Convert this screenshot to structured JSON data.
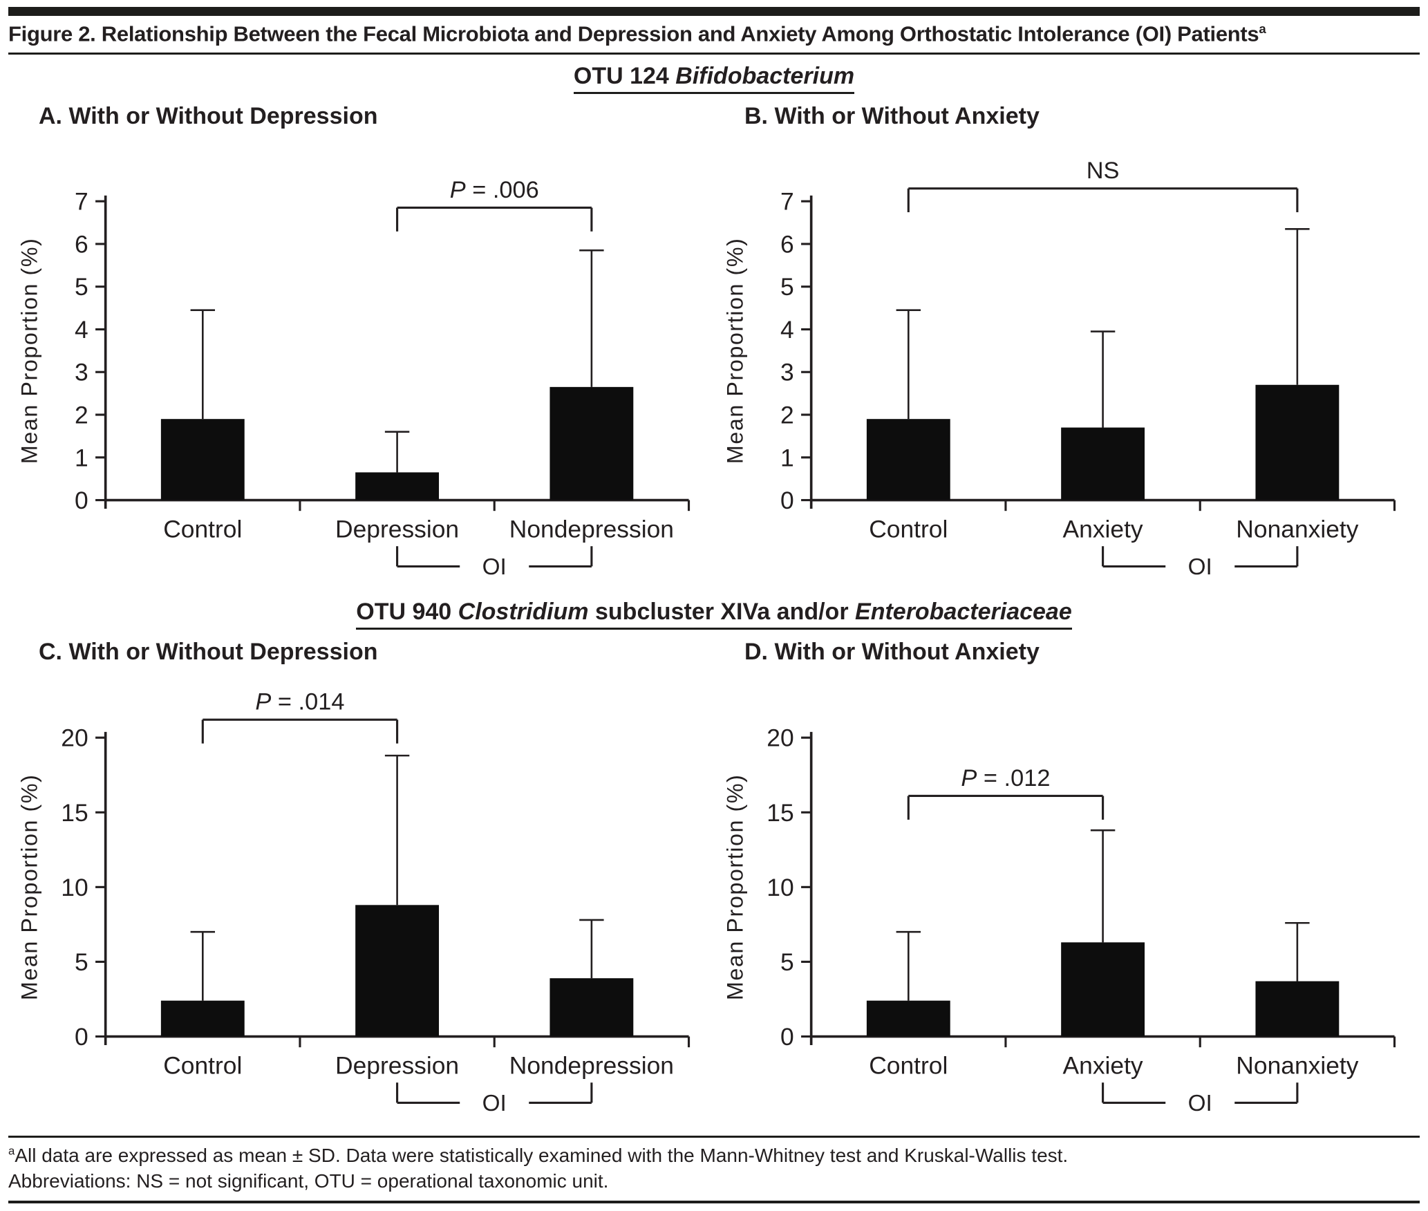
{
  "header": {
    "title": "Figure 2. Relationship Between the Fecal Microbiota and Depression and Anxiety Among Orthostatic Intolerance (OI) Patients",
    "superscript": "a"
  },
  "sections": [
    {
      "heading_parts": [
        {
          "text": "OTU 124 ",
          "italic": false
        },
        {
          "text": "Bifidobacterium",
          "italic": true
        }
      ]
    },
    {
      "heading_parts": [
        {
          "text": "OTU 940 ",
          "italic": false
        },
        {
          "text": "Clostridium",
          "italic": true
        },
        {
          "text": " subcluster XIVa and/or ",
          "italic": false
        },
        {
          "text": "Enterobacteriaceae",
          "italic": true
        }
      ]
    }
  ],
  "chart_data": [
    {
      "type": "bar",
      "panel": "A",
      "title": "A. With or Without Depression",
      "categories": [
        "Control",
        "Depression",
        "Nondepression"
      ],
      "values": [
        1.9,
        0.65,
        2.65
      ],
      "error_sd_tops": [
        4.45,
        1.6,
        5.85
      ],
      "ylabel": "Mean Proportion (%)",
      "ylim": [
        0,
        7
      ],
      "yticks": [
        0,
        1,
        2,
        3,
        4,
        5,
        6,
        7
      ],
      "grid": false,
      "significance": {
        "label": "P = .006",
        "from": "Depression",
        "to": "Nondepression",
        "height": 6.85
      },
      "group_bracket": {
        "label": "OI",
        "from": "Depression",
        "to": "Nondepression"
      }
    },
    {
      "type": "bar",
      "panel": "B",
      "title": "B. With or Without Anxiety",
      "categories": [
        "Control",
        "Anxiety",
        "Nonanxiety"
      ],
      "values": [
        1.9,
        1.7,
        2.7
      ],
      "error_sd_tops": [
        4.45,
        3.95,
        6.35
      ],
      "ylabel": "Mean Proportion (%)",
      "ylim": [
        0,
        7
      ],
      "yticks": [
        0,
        1,
        2,
        3,
        4,
        5,
        6,
        7
      ],
      "grid": false,
      "significance": {
        "label": "NS",
        "from": "Control",
        "to": "Nonanxiety",
        "height": 7.3
      },
      "group_bracket": {
        "label": "OI",
        "from": "Anxiety",
        "to": "Nonanxiety"
      }
    },
    {
      "type": "bar",
      "panel": "C",
      "title": "C. With or Without Depression",
      "categories": [
        "Control",
        "Depression",
        "Nondepression"
      ],
      "values": [
        2.4,
        8.8,
        3.9
      ],
      "error_sd_tops": [
        7.0,
        18.8,
        7.8
      ],
      "ylabel": "Mean Proportion (%)",
      "ylim": [
        0,
        20
      ],
      "yticks": [
        0,
        5,
        10,
        15,
        20
      ],
      "grid": false,
      "significance": {
        "label": "P = .014",
        "from": "Control",
        "to": "Depression",
        "height": 21.2
      },
      "group_bracket": {
        "label": "OI",
        "from": "Depression",
        "to": "Nondepression"
      }
    },
    {
      "type": "bar",
      "panel": "D",
      "title": "D. With or Without Anxiety",
      "categories": [
        "Control",
        "Anxiety",
        "Nonanxiety"
      ],
      "values": [
        2.4,
        6.3,
        3.7
      ],
      "error_sd_tops": [
        7.0,
        13.8,
        7.6
      ],
      "ylabel": "Mean Proportion (%)",
      "ylim": [
        0,
        20
      ],
      "yticks": [
        0,
        5,
        10,
        15,
        20
      ],
      "grid": false,
      "significance": {
        "label": "P = .012",
        "from": "Control",
        "to": "Anxiety",
        "height": 16.1
      },
      "group_bracket": {
        "label": "OI",
        "from": "Anxiety",
        "to": "Nonanxiety"
      }
    }
  ],
  "footnotes": [
    {
      "superscript": "a",
      "text": "All data are expressed as mean ± SD. Data were statistically examined with the Mann-Whitney test and Kruskal-Wallis test."
    },
    {
      "superscript": "",
      "text": "Abbreviations: NS = not significant, OTU = operational taxonomic unit."
    }
  ],
  "colors": {
    "bar": "#0d0d0d",
    "axis": "#231f20",
    "rule": "#1d1d1b"
  }
}
